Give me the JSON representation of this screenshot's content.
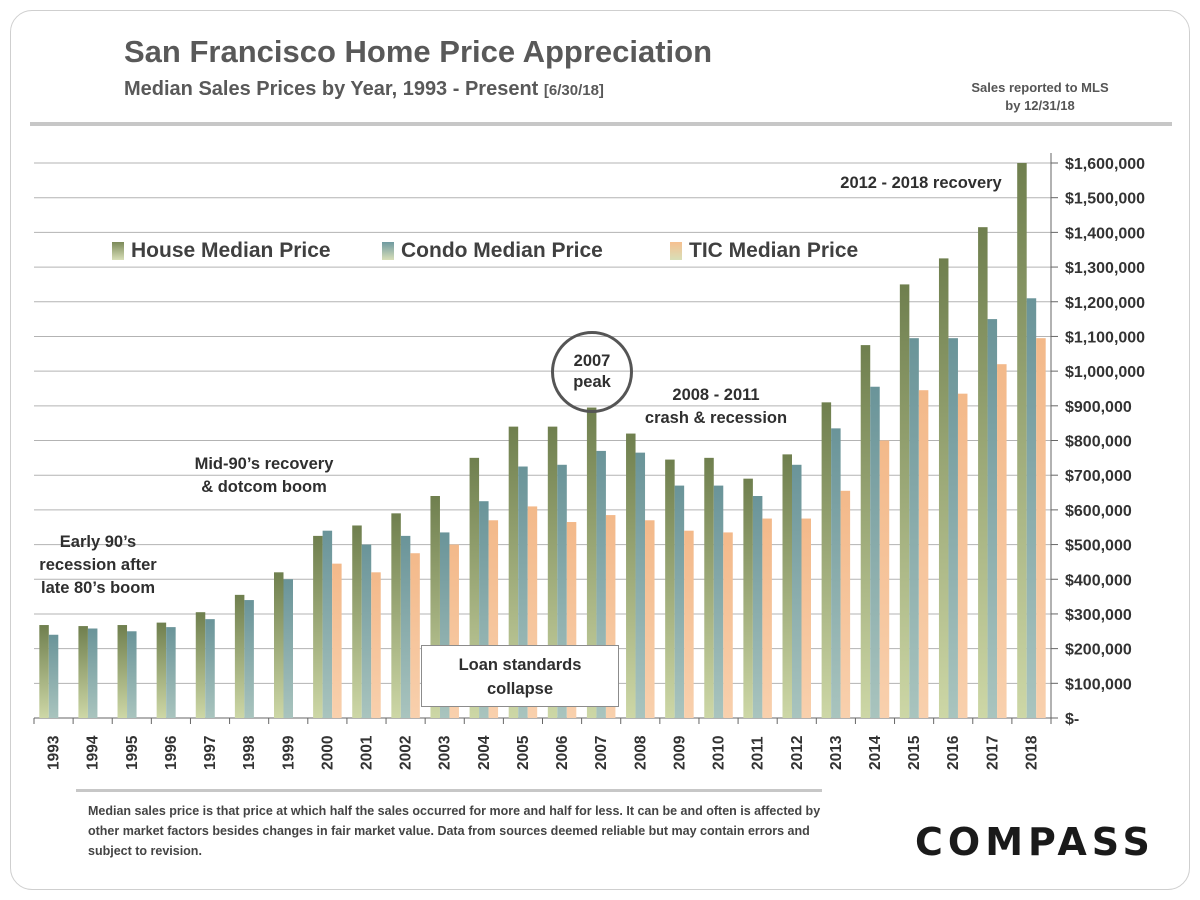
{
  "header": {
    "title": "San Francisco Home Price Appreciation",
    "subtitle": "Median Sales Prices by Year, 1993 - Present",
    "subtitle_asof": "[6/30/18]",
    "mls_note_line1": "Sales reported to MLS",
    "mls_note_line2": "by 12/31/18"
  },
  "legend": [
    {
      "label": "House Median Price",
      "color": "#7b8a59"
    },
    {
      "label": "Condo Median Price",
      "color": "#6f9aa0"
    },
    {
      "label": "TIC Median Price",
      "color": "#f6c090"
    }
  ],
  "annotations": {
    "early90s": [
      "Early 90’s",
      "recession after",
      "late 80’s boom"
    ],
    "mid90s": [
      "Mid-90’s recovery",
      "& dotcom boom"
    ],
    "loan": [
      "Loan standards",
      "collapse"
    ],
    "peak": [
      "2007",
      "peak"
    ],
    "crash": [
      "2008 - 2011",
      "crash & recession"
    ],
    "recovery": [
      "2012 - 2018 recovery"
    ]
  },
  "footnote": "Median sales price is that price at which half the sales occurred for more and half for less. It can be and often is affected by other market factors besides changes in fair market value. Data from sources deemed reliable but may contain errors and subject to revision.",
  "logo": "COMPASS",
  "chart_data": {
    "type": "bar",
    "title": "San Francisco Home Price Appreciation",
    "categories": [
      "1993",
      "1994",
      "1995",
      "1996",
      "1997",
      "1998",
      "1999",
      "2000",
      "2001",
      "2002",
      "2003",
      "2004",
      "2005",
      "2006",
      "2007",
      "2008",
      "2009",
      "2010",
      "2011",
      "2012",
      "2013",
      "2014",
      "2015",
      "2016",
      "2017",
      "2018"
    ],
    "series": [
      {
        "name": "House Median Price",
        "values": [
          268000,
          265000,
          268000,
          275000,
          305000,
          355000,
          420000,
          525000,
          555000,
          590000,
          640000,
          750000,
          840000,
          840000,
          895000,
          820000,
          745000,
          750000,
          690000,
          760000,
          910000,
          1075000,
          1250000,
          1325000,
          1415000,
          1600000
        ]
      },
      {
        "name": "Condo Median Price",
        "values": [
          240000,
          258000,
          250000,
          262000,
          285000,
          340000,
          400000,
          540000,
          500000,
          525000,
          535000,
          625000,
          725000,
          730000,
          770000,
          765000,
          670000,
          670000,
          640000,
          730000,
          835000,
          955000,
          1095000,
          1095000,
          1150000,
          1210000
        ]
      },
      {
        "name": "TIC Median Price",
        "values": [
          null,
          null,
          null,
          null,
          null,
          null,
          null,
          445000,
          420000,
          475000,
          500000,
          570000,
          610000,
          565000,
          585000,
          570000,
          540000,
          535000,
          575000,
          575000,
          655000,
          800000,
          945000,
          935000,
          1020000,
          1095000
        ]
      }
    ],
    "ylim": [
      0,
      1600000
    ],
    "yticks": [
      "$-",
      "$100,000",
      "$200,000",
      "$300,000",
      "$400,000",
      "$500,000",
      "$600,000",
      "$700,000",
      "$800,000",
      "$900,000",
      "$1,000,000",
      "$1,100,000",
      "$1,200,000",
      "$1,300,000",
      "$1,400,000",
      "$1,500,000",
      "$1,600,000"
    ],
    "grid": true,
    "legend_position": "top-left"
  }
}
